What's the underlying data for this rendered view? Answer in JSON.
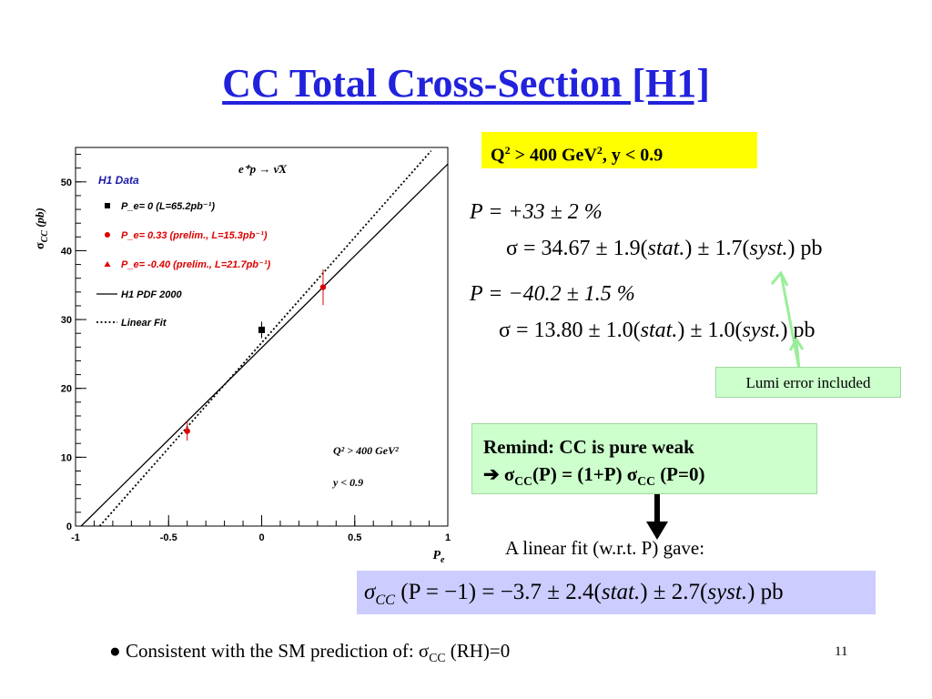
{
  "slide": {
    "title": "CC Total Cross-Section [H1]",
    "page_number": "11"
  },
  "cut_box": {
    "text_q": "Q",
    "text_sup1": "2",
    "text_mid": " > 400 GeV",
    "text_sup2": "2",
    "text_end": ",  y < 0.9"
  },
  "results": {
    "p1_label": "P = +33 ± 2 %",
    "sigma1": {
      "prefix": "σ = 34.67 ± 1.9(",
      "stat": "stat.",
      "mid": ") ± 1.7(",
      "syst": "syst.",
      "end": ") pb"
    },
    "p2_label": "P = −40.2 ± 1.5 %",
    "sigma2": {
      "prefix": "σ = 13.80 ± 1.0(",
      "stat": "stat.",
      "mid": ") ± 1.0(",
      "syst": "syst.",
      "end": ") pb"
    },
    "lumi_note": "Lumi error included"
  },
  "remind": {
    "line1": "Remind: CC is pure weak",
    "arrow": "➔",
    "line2_a": " σ",
    "line2_sub1": "CC",
    "line2_b": "(P) = (1+P) σ",
    "line2_sub2": "CC",
    "line2_c": " (P=0)"
  },
  "fit": {
    "intro": "A linear fit (w.r.t. P) gave:",
    "sigma": "σ",
    "sub": "CC",
    "expr_a": " (P = −1) = −3.7 ± 2.4(",
    "stat": "stat.",
    "expr_b": ") ± 2.7(",
    "syst": "syst.",
    "expr_c": ") pb"
  },
  "conclusion": {
    "bullet": "●",
    "text": " Consistent with the SM prediction of: σ",
    "sub": "CC",
    "end": " (RH)=0"
  },
  "colors": {
    "title": "#2222dd",
    "data_black": "#000000",
    "data_red": "#dd0000",
    "legend_title": "#1a1aaa",
    "highlight_yellow": "#ffff00",
    "highlight_green": "#ccffcc",
    "highlight_blue": "#ccccff",
    "arrow_green": "#99ee99"
  },
  "chart_data": {
    "type": "scatter",
    "xlabel": "P",
    "xlabel_sub": "e",
    "ylabel": "σ",
    "ylabel_sub": "CC",
    "ylabel_unit": "(pb)",
    "xlim": [
      -1,
      1
    ],
    "ylim": [
      0,
      55
    ],
    "x_ticks": [
      -1,
      -0.5,
      0,
      0.5,
      1
    ],
    "x_tick_labels": [
      "-1",
      "-0.5",
      "0",
      "0.5",
      "1"
    ],
    "y_ticks": [
      0,
      10,
      20,
      30,
      40,
      50
    ],
    "y_tick_labels": [
      "0",
      "10",
      "20",
      "30",
      "40",
      "50"
    ],
    "process": "e⁺p → ν̄X",
    "legend_title": "H1 Data",
    "series": [
      {
        "name": "Pe= 0 (L=65.2pb-1)",
        "legend": "P_e=   0 (L=65.2pb⁻¹)",
        "marker": "square",
        "color": "#000000",
        "points": [
          {
            "x": 0,
            "y": 28.5,
            "err": 1.2
          }
        ]
      },
      {
        "name": "Pe= 0.33 (prelim., L=15.3pb-1)",
        "legend": "P_e=  0.33 (prelim.,  L=15.3pb⁻¹)",
        "marker": "circle",
        "color": "#dd0000",
        "points": [
          {
            "x": 0.33,
            "y": 34.7,
            "err": 2.6
          }
        ]
      },
      {
        "name": "Pe= -0.40 (prelim., L=21.7pb-1)",
        "legend": "P_e= -0.40 (prelim.,  L=21.7pb⁻¹)",
        "marker": "triangle",
        "color": "#dd0000",
        "points": [
          {
            "x": -0.4,
            "y": 13.8,
            "err": 1.4
          }
        ]
      }
    ],
    "lines": [
      {
        "name": "H1 PDF 2000",
        "style": "solid",
        "x": [
          -0.97,
          1.0
        ],
        "y": [
          0.0,
          52.6
        ]
      },
      {
        "name": "Linear Fit",
        "style": "dotted",
        "x": [
          -0.87,
          0.91
        ],
        "y": [
          0.0,
          54.5
        ]
      }
    ],
    "annotation_q": "Q² > 400 GeV²",
    "annotation_y": "y < 0.9"
  }
}
